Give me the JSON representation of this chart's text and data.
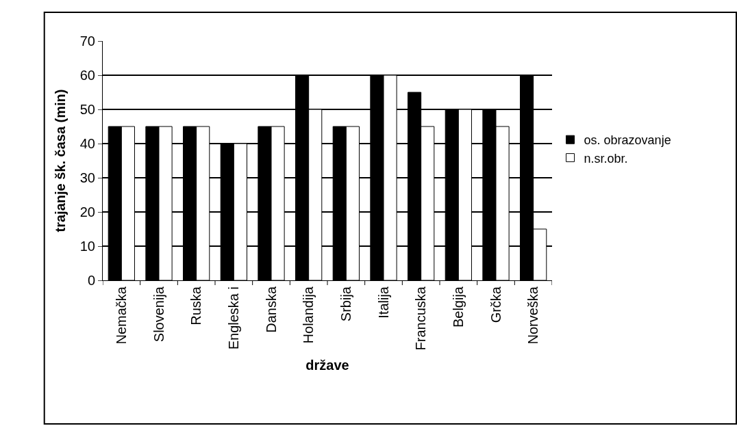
{
  "chart_data": {
    "type": "bar",
    "xlabel": "države",
    "ylabel": "trajanje šk. časa (min)",
    "categories": [
      "Nemačka",
      "Slovenija",
      "Ruska",
      "Engleska i",
      "Danska",
      "Holandija",
      "Srbija",
      "Italija",
      "Francuska",
      "Belgija",
      "Grčka",
      "Norveška"
    ],
    "series": [
      {
        "name": "os. obrazovanje",
        "color": "#000000",
        "values": [
          45,
          45,
          45,
          40,
          45,
          60,
          45,
          60,
          55,
          50,
          50,
          60
        ]
      },
      {
        "name": "n.sr.obr.",
        "color": "#ffffff",
        "values": [
          45,
          45,
          45,
          40,
          45,
          50,
          45,
          60,
          45,
          50,
          45,
          15
        ]
      }
    ],
    "ylim": [
      0,
      70
    ],
    "yticks": [
      0,
      10,
      20,
      30,
      40,
      50,
      60,
      70
    ],
    "grid": "y",
    "legend": "right"
  }
}
